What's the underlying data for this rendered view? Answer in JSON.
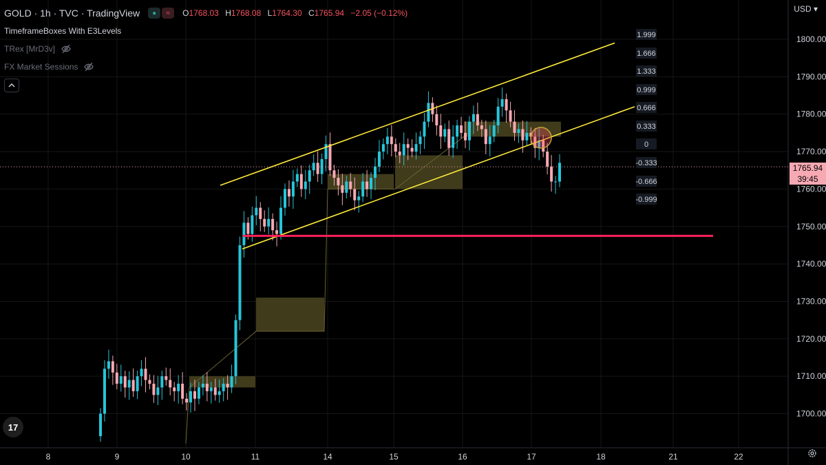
{
  "header": {
    "symbol": "GOLD · 1h · TVC · TradingView",
    "ohlc": {
      "o_label": "O",
      "o_value": "1768.03",
      "h_label": "H",
      "h_value": "1768.08",
      "l_label": "L",
      "l_value": "1764.30",
      "c_label": "C",
      "c_value": "1765.94",
      "change": "−2.05 (−0.12%)"
    },
    "indicators": [
      "TimeframeBoxes With E3Levels",
      "TRex [MrD3v]",
      "FX Market Sessions"
    ]
  },
  "currency": "USD",
  "price_tag": {
    "price": "1765.94",
    "countdown": "39:45"
  },
  "fib_levels": [
    "1.999",
    "1.666",
    "1.333",
    "0.999",
    "0.666",
    "0.333",
    "0",
    "-0.333",
    "-0.666",
    "-0.999"
  ],
  "colors": {
    "up": "#26c6da",
    "down": "#f7a9b3",
    "channel": "#ffeb3b",
    "support": "#ff1f5a",
    "box": "#4b4520"
  },
  "chart_data": {
    "type": "candlestick",
    "symbol": "GOLD",
    "interval": "1h",
    "y_ticks": [
      1800,
      1790,
      1780,
      1770,
      1760,
      1750,
      1740,
      1730,
      1720,
      1710,
      1700
    ],
    "y_tick_labels": [
      "1800.00",
      "1790.00",
      "1780.00",
      "1770.00",
      "1760.00",
      "1750.00",
      "1740.00",
      "1730.00",
      "1720.00",
      "1710.00",
      "1700.00"
    ],
    "x_tick_labels": [
      "8",
      "9",
      "10",
      "11",
      "14",
      "15",
      "16",
      "17",
      "18",
      "21",
      "22"
    ],
    "ylim": [
      1692,
      1807
    ],
    "last_price": 1765.94,
    "support_level": 1747.5,
    "channel": {
      "upper": {
        "start": 1761,
        "end": 1799
      },
      "lower": {
        "start": 1744,
        "end": 1782
      }
    },
    "closes": [
      1700,
      1712,
      1714,
      1711,
      1708,
      1710,
      1707,
      1709,
      1706,
      1710,
      1712,
      1709,
      1708,
      1705,
      1707,
      1710,
      1709,
      1707,
      1706,
      1708,
      1704,
      1703,
      1706,
      1704,
      1707,
      1708,
      1706,
      1707,
      1705,
      1706,
      1708,
      1707,
      1710,
      1725,
      1745,
      1751,
      1748,
      1753,
      1755,
      1752,
      1750,
      1752,
      1749,
      1748,
      1755,
      1760,
      1758,
      1762,
      1764,
      1760,
      1762,
      1765,
      1767,
      1764,
      1768,
      1772,
      1765,
      1763,
      1761,
      1759,
      1762,
      1760,
      1757,
      1758,
      1762,
      1760,
      1763,
      1766,
      1770,
      1772,
      1774,
      1772,
      1770,
      1769,
      1772,
      1771,
      1770,
      1772,
      1774,
      1778,
      1783,
      1780,
      1777,
      1774,
      1776,
      1771,
      1774,
      1777,
      1775,
      1773,
      1778,
      1780,
      1777,
      1776,
      1772,
      1774,
      1777,
      1782,
      1784,
      1781,
      1778,
      1775,
      1776,
      1773,
      1775,
      1774,
      1771,
      1773,
      1770,
      1766,
      1762,
      1762,
      1767
    ]
  }
}
